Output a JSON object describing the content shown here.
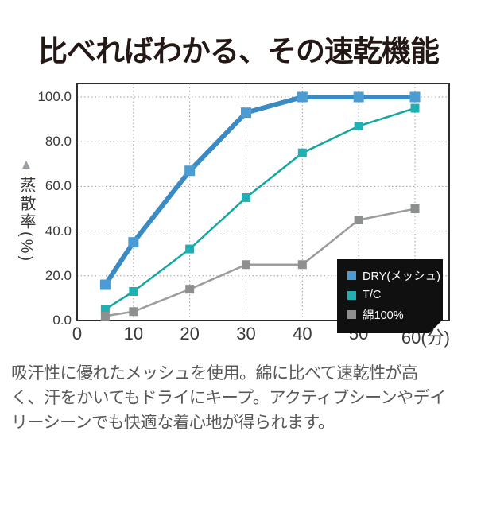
{
  "header": {
    "title": "比べればわかる、その速乾機能"
  },
  "chart_data": {
    "type": "line",
    "title": "比べればわかる、その速乾機能",
    "ylabel": "蒸散率(%)",
    "ylabel_pointer": "▲",
    "xlabel": "(分)",
    "x": [
      5,
      10,
      20,
      30,
      40,
      50,
      60
    ],
    "series": [
      {
        "name": "DRY(メッシュ)",
        "values": [
          16,
          35,
          67,
          93,
          100,
          100,
          100
        ],
        "color": "#3a8ac3",
        "marker_color": "#4a9cd2"
      },
      {
        "name": "T/C",
        "values": [
          5,
          13,
          32,
          55,
          75,
          87,
          95
        ],
        "color": "#13a7a0",
        "marker_color": "#1fb0b4"
      },
      {
        "name": "綿100%",
        "values": [
          2,
          4,
          14,
          25,
          25,
          45,
          50
        ],
        "color": "#9b9c9c",
        "marker_color": "#8d8f90"
      }
    ],
    "xlim": [
      0,
      66
    ],
    "ylim": [
      0,
      106
    ],
    "x_ticks": {
      "values": [
        0,
        10,
        20,
        30,
        40,
        50,
        60
      ],
      "labels": [
        "0",
        "10",
        "20",
        "30",
        "40",
        "50",
        "60(分)"
      ]
    },
    "y_ticks": {
      "values": [
        0,
        20,
        40,
        60,
        80,
        100
      ],
      "labels": [
        "0.0",
        "20.0",
        "40.0",
        "60.0",
        "80.0",
        "100.0"
      ]
    },
    "grid": "dotted",
    "legend_position": "bottom-right"
  },
  "footer": {
    "lines": [
      "吸汗性に優れたメッシュを使用。綿に比べて速乾性が高",
      "く、汗をかいてもドライにキープ。アクティブシーンやデイ",
      "リーシーンでも快適な着心地が得られます。"
    ]
  },
  "colors": {
    "title_text": "#231815",
    "footer_text": "#595757",
    "legend_bg": "#101010",
    "grid": "#9b9b9b",
    "axis_frame": "#2e2e2e",
    "pointer": "#98a0a8"
  }
}
